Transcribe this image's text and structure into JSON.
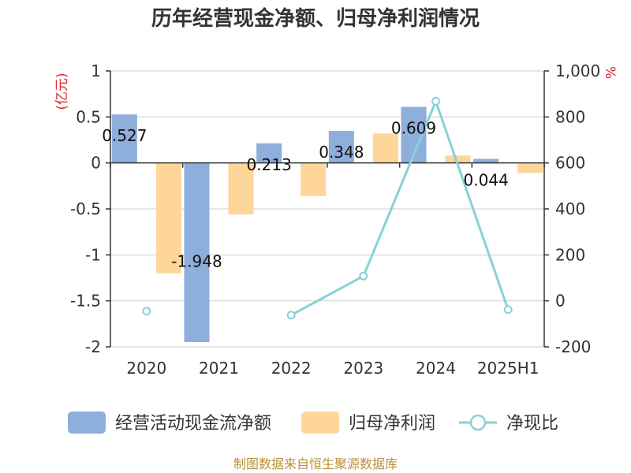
{
  "chart_data": {
    "type": "bar",
    "title": "历年经营现金净额、归母净利润情况",
    "categories": [
      "2020",
      "2021",
      "2022",
      "2023",
      "2024",
      "2025H1"
    ],
    "left_axis": {
      "unit": "(亿元)",
      "range": [
        -2,
        1
      ],
      "ticks": [
        "1",
        "0.5",
        "0",
        "-0.5",
        "-1",
        "-1.5",
        "-2"
      ],
      "tick_values": [
        1,
        0.5,
        0,
        -0.5,
        -1,
        -1.5,
        -2
      ]
    },
    "right_axis": {
      "unit": "%",
      "range": [
        -200,
        1000
      ],
      "ticks": [
        "1,000",
        "800",
        "600",
        "400",
        "200",
        "0",
        "-200"
      ],
      "tick_values": [
        1000,
        800,
        600,
        400,
        200,
        0,
        -200
      ]
    },
    "series": [
      {
        "name": "经营活动现金流净额",
        "type": "bar",
        "axis": "left",
        "color": "#8eaedb",
        "values": [
          0.527,
          -1.948,
          0.213,
          0.348,
          0.609,
          0.044
        ],
        "labels": [
          "0.527",
          "-1.948",
          "0.213",
          "0.348",
          "0.609",
          "0.044"
        ]
      },
      {
        "name": "归母净利润",
        "type": "bar",
        "axis": "left",
        "color": "#fed699",
        "values": [
          -1.2,
          -0.56,
          -0.36,
          0.32,
          0.08,
          -0.11
        ]
      },
      {
        "name": "净现比",
        "type": "line",
        "axis": "right",
        "color": "#87d2d8",
        "values": [
          -45,
          null,
          -62,
          108,
          868,
          -38
        ]
      }
    ],
    "grid": true,
    "legend": "bottom"
  },
  "source": "制图数据来自恒生聚源数据库"
}
